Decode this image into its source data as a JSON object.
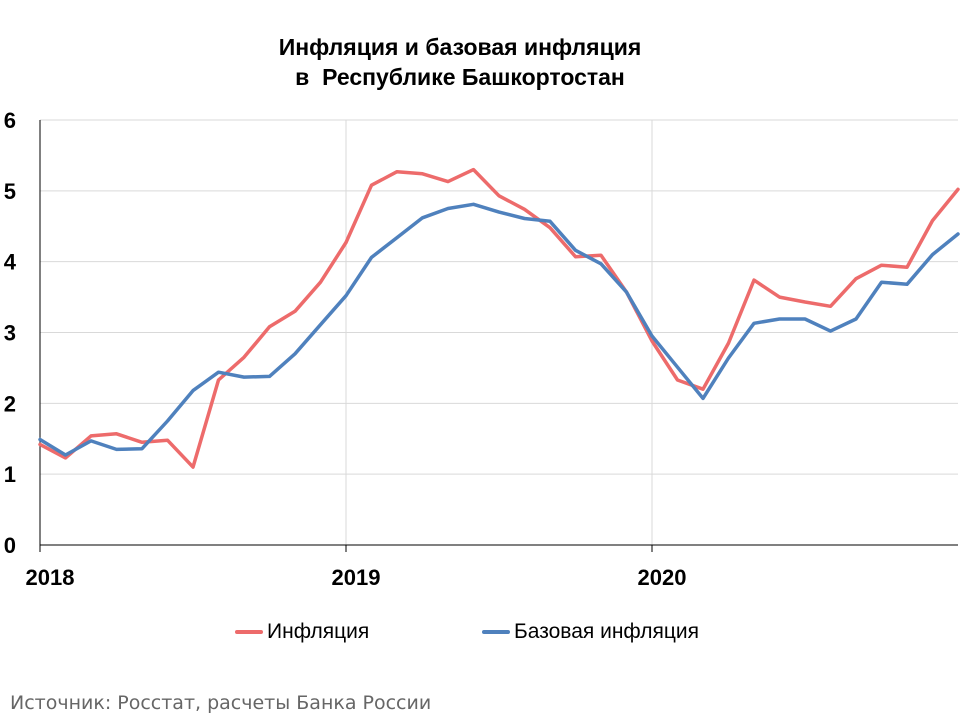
{
  "title_line1": "Инфляция и базовая инфляция",
  "title_line2": "в  Республике Башкортостан",
  "source_note": "Источник: Росстат, расчеты Банка России",
  "colors": {
    "inflation": "#ED6B6B",
    "core": "#4F81BD",
    "grid": "#D9D9D9",
    "axis": "#000000"
  },
  "chart_data": {
    "type": "line",
    "title": "Инфляция и базовая инфляция в  Республике Башкортостан",
    "ylim": [
      0,
      6
    ],
    "yticks": [
      "0",
      "1",
      "2",
      "3",
      "4",
      "5",
      "6"
    ],
    "xticks": [
      "2018",
      "2019",
      "2020"
    ],
    "x_start": "2018-01",
    "grid": true,
    "legend_position": "bottom",
    "series": [
      {
        "name": "Инфляция",
        "color": "#ED6B6B",
        "values": [
          1.42,
          1.23,
          1.54,
          1.57,
          1.45,
          1.48,
          1.1,
          2.33,
          2.65,
          3.08,
          3.3,
          3.71,
          4.27,
          5.08,
          5.27,
          5.24,
          5.13,
          5.3,
          4.93,
          4.74,
          4.48,
          4.07,
          4.09,
          3.57,
          2.88,
          2.33,
          2.2,
          2.85,
          3.74,
          3.5,
          3.43,
          3.37,
          3.76,
          3.95,
          3.92,
          4.58,
          5.02
        ]
      },
      {
        "name": "Базовая инфляция",
        "color": "#4F81BD",
        "values": [
          1.49,
          1.27,
          1.47,
          1.35,
          1.36,
          1.75,
          2.18,
          2.44,
          2.37,
          2.38,
          2.7,
          3.11,
          3.52,
          4.06,
          4.34,
          4.62,
          4.75,
          4.81,
          4.7,
          4.61,
          4.57,
          4.16,
          3.97,
          3.57,
          2.95,
          2.51,
          2.07,
          2.64,
          3.13,
          3.19,
          3.19,
          3.02,
          3.19,
          3.71,
          3.68,
          4.1,
          4.39
        ]
      }
    ]
  }
}
